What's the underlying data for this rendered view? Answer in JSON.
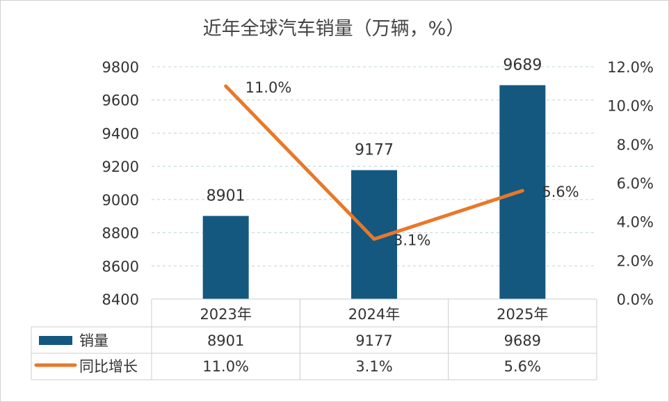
{
  "chart_data": {
    "type": "bar+line",
    "title": "近年全球汽车销量（万辆，%）",
    "categories": [
      "2023年",
      "2024年",
      "2025年"
    ],
    "series": [
      {
        "name": "销量",
        "type": "bar",
        "axis": "left",
        "values": [
          8901,
          9177,
          9689
        ],
        "labels": [
          "8901",
          "9177",
          "9689"
        ],
        "color": "#15587f"
      },
      {
        "name": "同比增长",
        "type": "line",
        "axis": "right",
        "values": [
          11.0,
          3.1,
          5.6
        ],
        "labels": [
          "11.0%",
          "3.1%",
          "5.6%"
        ],
        "color": "#e8782a"
      }
    ],
    "left_axis": {
      "min": 8400,
      "max": 9800,
      "ticks": [
        "8400",
        "8600",
        "8800",
        "9000",
        "9200",
        "9400",
        "9600",
        "9800"
      ]
    },
    "right_axis": {
      "min": 0,
      "max": 12,
      "ticks": [
        "0.0%",
        "2.0%",
        "4.0%",
        "6.0%",
        "8.0%",
        "10.0%",
        "12.0%"
      ]
    },
    "grid": "horizontal dashed",
    "legend": "data-table"
  }
}
